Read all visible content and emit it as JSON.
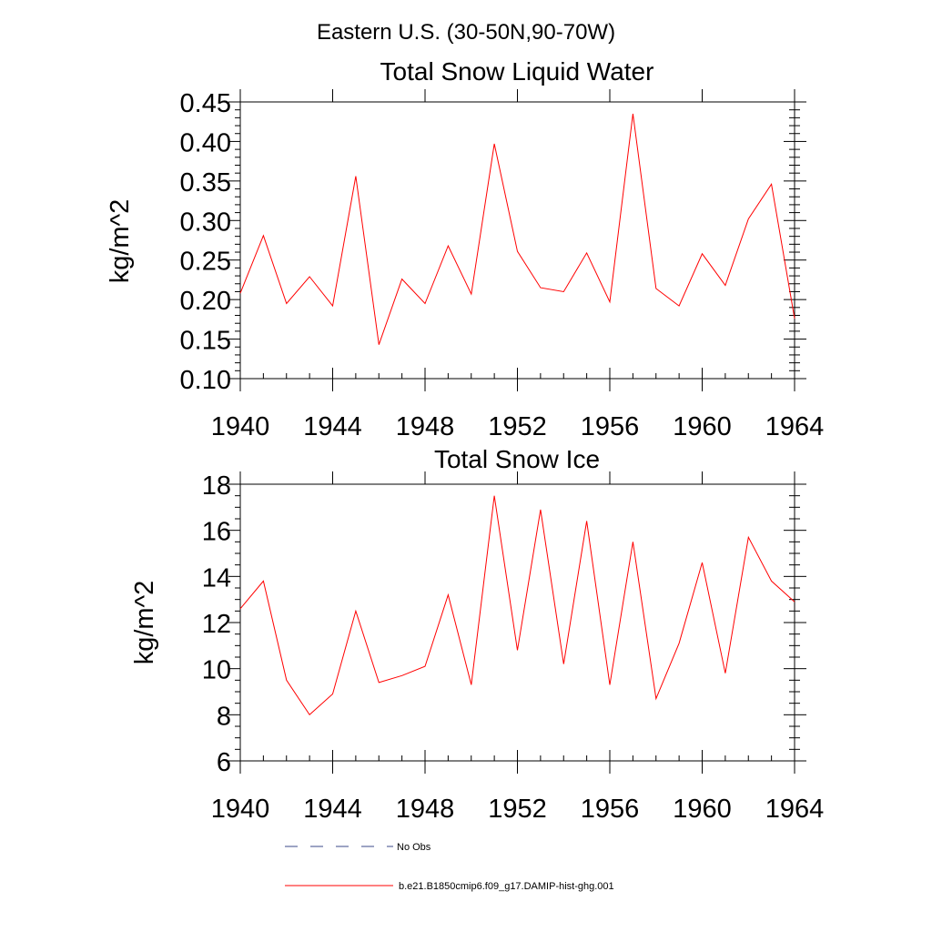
{
  "figure": {
    "suptitle": "Eastern U.S. (30-50N,90-70W)"
  },
  "legend": {
    "entries": [
      {
        "label": "No Obs",
        "style": "dashed",
        "color": "#3b4a8a"
      },
      {
        "label": "b.e21.B1850cmip6.f09_g17.DAMIP-hist-ghg.001",
        "style": "solid",
        "color": "#ff0000"
      }
    ]
  },
  "chart_data": [
    {
      "type": "line",
      "title": "Total Snow Liquid Water",
      "xlabel": "",
      "ylabel": "kg/m^2",
      "xlim": [
        1940,
        1964
      ],
      "ylim": [
        0.1,
        0.45
      ],
      "x_ticks": [
        "1940",
        "1944",
        "1948",
        "1952",
        "1956",
        "1960",
        "1964"
      ],
      "y_ticks": [
        "0.10",
        "0.15",
        "0.20",
        "0.25",
        "0.30",
        "0.35",
        "0.40",
        "0.45"
      ],
      "series": [
        {
          "name": "b.e21.B1850cmip6.f09_g17.DAMIP-hist-ghg.001",
          "color": "#ff0000",
          "x": [
            1940,
            1941,
            1942,
            1943,
            1944,
            1945,
            1946,
            1947,
            1948,
            1949,
            1950,
            1951,
            1952,
            1953,
            1954,
            1955,
            1956,
            1957,
            1958,
            1959,
            1960,
            1961,
            1962,
            1963,
            1964
          ],
          "y": [
            0.208,
            0.281,
            0.195,
            0.229,
            0.192,
            0.356,
            0.143,
            0.226,
            0.195,
            0.268,
            0.207,
            0.397,
            0.261,
            0.215,
            0.21,
            0.259,
            0.197,
            0.435,
            0.214,
            0.192,
            0.258,
            0.218,
            0.302,
            0.346,
            0.176
          ]
        }
      ]
    },
    {
      "type": "line",
      "title": "Total Snow Ice",
      "xlabel": "",
      "ylabel": "kg/m^2",
      "xlim": [
        1940,
        1964
      ],
      "ylim": [
        6,
        18
      ],
      "x_ticks": [
        "1940",
        "1944",
        "1948",
        "1952",
        "1956",
        "1960",
        "1964"
      ],
      "y_ticks": [
        "6",
        "8",
        "10",
        "12",
        "14",
        "16",
        "18"
      ],
      "series": [
        {
          "name": "b.e21.B1850cmip6.f09_g17.DAMIP-hist-ghg.001",
          "color": "#ff0000",
          "x": [
            1940,
            1941,
            1942,
            1943,
            1944,
            1945,
            1946,
            1947,
            1948,
            1949,
            1950,
            1951,
            1952,
            1953,
            1954,
            1955,
            1956,
            1957,
            1958,
            1959,
            1960,
            1961,
            1962,
            1963,
            1964
          ],
          "y": [
            12.6,
            13.8,
            9.5,
            8.0,
            8.9,
            12.5,
            9.4,
            9.7,
            10.1,
            13.2,
            9.3,
            17.5,
            10.8,
            16.9,
            10.2,
            16.4,
            9.3,
            15.5,
            8.7,
            11.1,
            14.6,
            9.8,
            15.7,
            13.8,
            12.9
          ]
        }
      ]
    }
  ]
}
